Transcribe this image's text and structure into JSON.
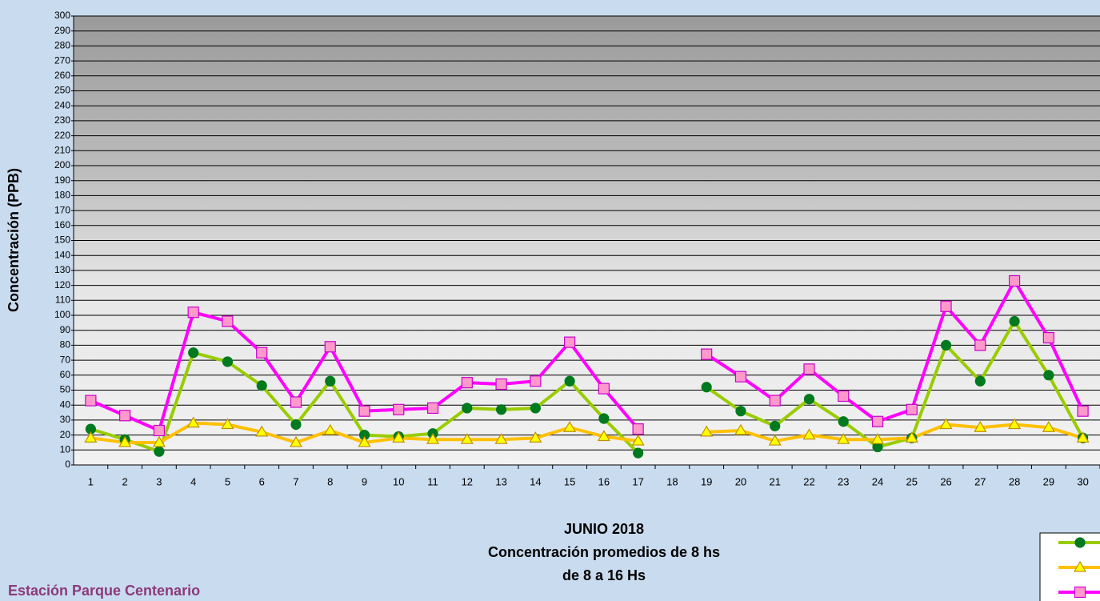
{
  "chart_data": {
    "type": "line",
    "ylabel": "Concentración (PPB)",
    "title_lines": [
      "JUNIO 2018",
      "Concentración promedios de 8 hs",
      "de 8 a 16 Hs"
    ],
    "footer": "Estación Parque Centenario",
    "categories": [
      "1",
      "2",
      "3",
      "4",
      "5",
      "6",
      "7",
      "8",
      "9",
      "10",
      "11",
      "12",
      "13",
      "14",
      "15",
      "16",
      "17",
      "18",
      "19",
      "20",
      "21",
      "22",
      "23",
      "24",
      "25",
      "26",
      "27",
      "28",
      "29",
      "30"
    ],
    "series": [
      {
        "color": "#99cc00",
        "marker": "circle",
        "marker_color": "#007a1e",
        "values": [
          24,
          17,
          9,
          75,
          69,
          53,
          27,
          56,
          20,
          19,
          21,
          38,
          37,
          38,
          56,
          31,
          8,
          null,
          52,
          36,
          26,
          44,
          29,
          12,
          18,
          80,
          56,
          96,
          60,
          18
        ]
      },
      {
        "color": "#ffc000",
        "marker": "triangle",
        "marker_color": "#ffff00",
        "values": [
          18,
          15,
          15,
          28,
          27,
          22,
          15,
          23,
          15,
          18,
          17,
          17,
          17,
          18,
          25,
          19,
          16,
          null,
          22,
          23,
          16,
          20,
          17,
          17,
          18,
          27,
          25,
          27,
          25,
          18
        ]
      },
      {
        "color": "#ff00ff",
        "marker": "square",
        "marker_color": "#ff99cc",
        "values": [
          43,
          33,
          23,
          102,
          96,
          75,
          42,
          79,
          36,
          37,
          38,
          55,
          54,
          56,
          82,
          51,
          24,
          null,
          74,
          59,
          43,
          64,
          46,
          29,
          37,
          106,
          80,
          123,
          85,
          36
        ]
      }
    ],
    "ylim": [
      0,
      300
    ],
    "yticks": [
      0,
      10,
      20,
      30,
      40,
      50,
      60,
      70,
      80,
      90,
      100,
      110,
      120,
      130,
      140,
      150,
      160,
      170,
      180,
      190,
      200,
      210,
      220,
      230,
      240,
      250,
      260,
      270,
      280,
      290,
      300
    ],
    "grid": true
  }
}
